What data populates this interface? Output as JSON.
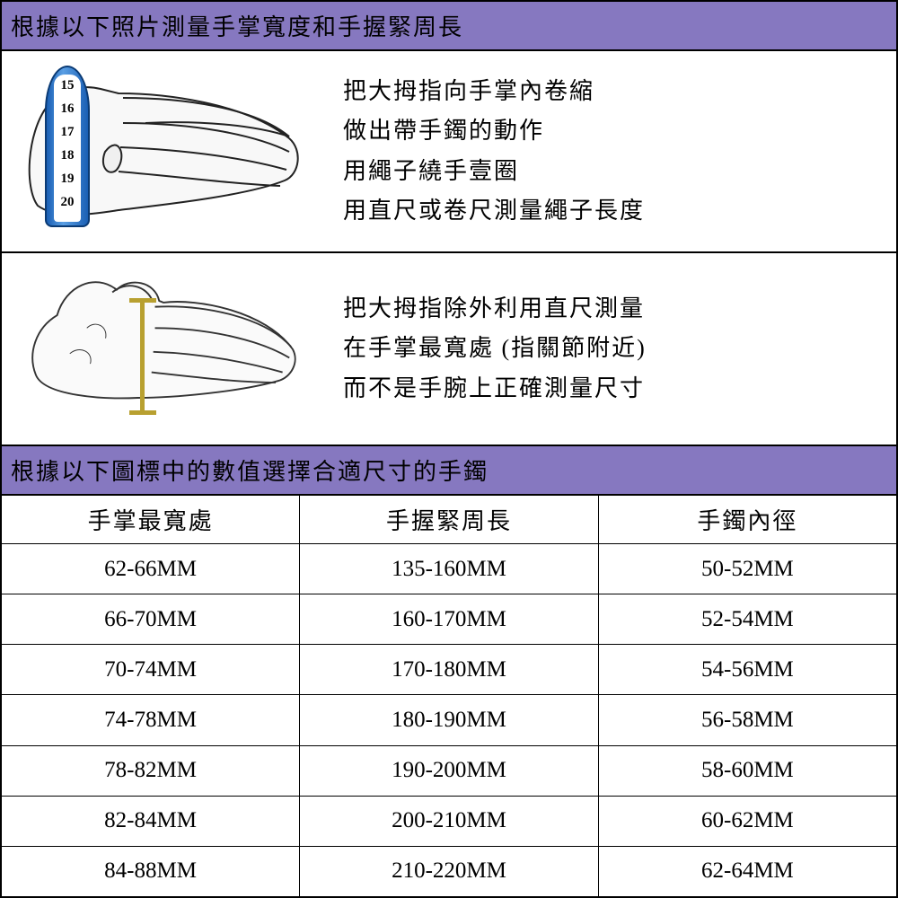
{
  "colors": {
    "header_bg": "#8678c0",
    "border": "#000000",
    "page_bg": "#808080",
    "panel_bg": "#ffffff",
    "tape_blue": "#1a5fb4",
    "tape_light": "#5a9fe4",
    "measure_gold": "#b8a030"
  },
  "typography": {
    "header_fontsize": 26,
    "body_fontsize": 26,
    "table_header_fontsize": 26,
    "table_cell_fontsize": 25,
    "font_family": "PMingLiU, serif",
    "letter_spacing": 2
  },
  "header1": "根據以下照片測量手掌寬度和手握緊周長",
  "panel1": {
    "lines": [
      "把大拇指向手掌內卷縮",
      "做出帶手鐲的動作",
      "用繩子繞手壹圈",
      "用直尺或卷尺測量繩子長度"
    ],
    "tape_numbers": [
      "15",
      "16",
      "17",
      "18",
      "19",
      "20"
    ]
  },
  "panel2": {
    "lines": [
      "把大拇指除外利用直尺測量",
      "在手掌最寬處 (指關節附近)",
      "而不是手腕上正確測量尺寸"
    ]
  },
  "header2": "根據以下圖標中的數值選擇合適尺寸的手鐲",
  "table": {
    "type": "table",
    "columns": [
      "手掌最寬處",
      "手握緊周長",
      "手鐲內徑"
    ],
    "rows": [
      [
        "62-66MM",
        "135-160MM",
        "50-52MM"
      ],
      [
        "66-70MM",
        "160-170MM",
        "52-54MM"
      ],
      [
        "70-74MM",
        "170-180MM",
        "54-56MM"
      ],
      [
        "74-78MM",
        "180-190MM",
        "56-58MM"
      ],
      [
        "78-82MM",
        "190-200MM",
        "58-60MM"
      ],
      [
        "82-84MM",
        "200-210MM",
        "60-62MM"
      ],
      [
        "84-88MM",
        "210-220MM",
        "62-64MM"
      ]
    ],
    "column_widths": [
      "33.3%",
      "33.4%",
      "33.3%"
    ]
  }
}
